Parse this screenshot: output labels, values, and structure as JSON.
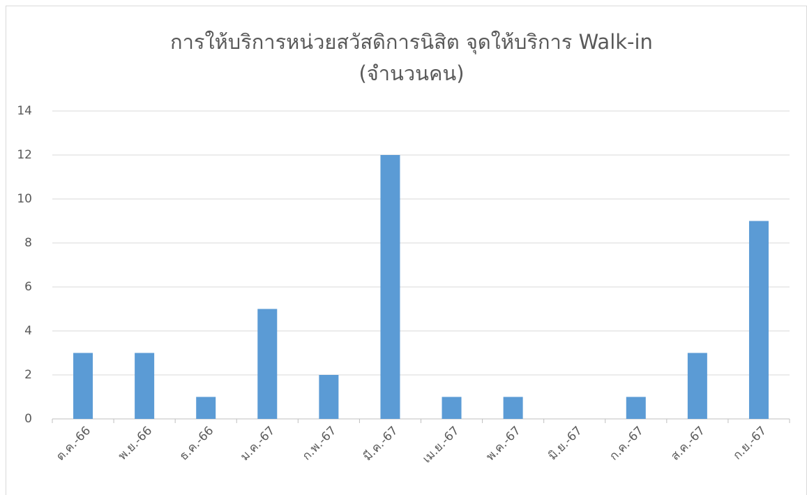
{
  "chart_data": {
    "type": "bar",
    "title": "การให้บริการหน่วยสวัสดิการนิสิต จุดให้บริการ Walk-in",
    "subtitle": "(จำนวนคน)",
    "categories": [
      "ต.ค.-66",
      "พ.ย.-66",
      "ธ.ค.-66",
      "ม.ค.-67",
      "ก.พ.-67",
      "มี.ค.-67",
      "เม.ย.-67",
      "พ.ค.-67",
      "มิ.ย.-67",
      "ก.ค.-67",
      "ส.ค.-67",
      "ก.ย.-67"
    ],
    "values": [
      3,
      3,
      1,
      5,
      2,
      12,
      1,
      1,
      0,
      1,
      3,
      9
    ],
    "color": "#5b9bd5",
    "ylim": [
      0,
      14
    ],
    "yticks": [
      0,
      2,
      4,
      6,
      8,
      10,
      12,
      14
    ],
    "grid": true
  }
}
